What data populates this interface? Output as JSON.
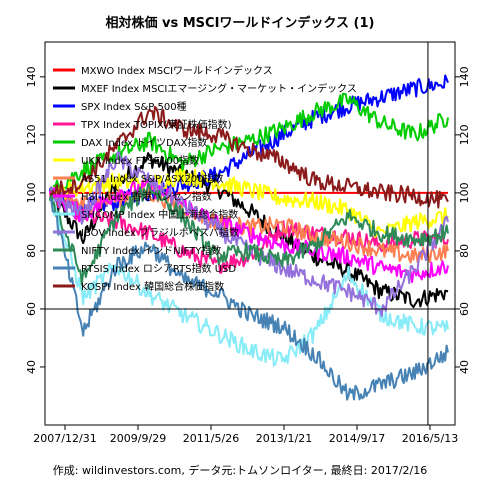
{
  "chart_data": {
    "type": "line",
    "title": "相対株価 vs MSCIワールドインデックス (1)",
    "caption": "作成: wildinvestors.com, データ元:トムソンロイター, 最終日: 2017/2/16",
    "x_tick_labels": [
      "2007/12/31",
      "2009/9/29",
      "2011/5/26",
      "2013/1/21",
      "2014/9/17",
      "2016/5/13"
    ],
    "x_range": [
      "2007-12-31",
      "2017-02-16"
    ],
    "ylim": [
      20,
      152
    ],
    "y_ticks": [
      40,
      60,
      80,
      100,
      120,
      140
    ],
    "reference_lines": [
      {
        "type": "horizontal",
        "y": 60,
        "color": "#000000"
      },
      {
        "type": "vertical",
        "x": "2016-09-01",
        "color": "#000000"
      }
    ],
    "legend_position": "top-left",
    "series": [
      {
        "name": "MXWO Index MSCIワールドインデックス",
        "color": "#ff0000",
        "points": [
          [
            0,
            100
          ],
          [
            1,
            100
          ],
          [
            2,
            100
          ],
          [
            3,
            100
          ],
          [
            4,
            100
          ],
          [
            5,
            100
          ],
          [
            6,
            100
          ],
          [
            7,
            100
          ],
          [
            8,
            100
          ],
          [
            9,
            100
          ],
          [
            10,
            100
          ],
          [
            11,
            100
          ],
          [
            12,
            100
          ]
        ]
      },
      {
        "name": "MXEF Index MSCIエマージング・マーケット・インデックス",
        "color": "#000000",
        "points": [
          [
            0,
            100
          ],
          [
            1,
            84
          ],
          [
            2,
            103
          ],
          [
            3,
            112
          ],
          [
            4,
            106
          ],
          [
            5,
            102
          ],
          [
            6,
            94
          ],
          [
            7,
            85
          ],
          [
            8,
            78
          ],
          [
            9,
            73
          ],
          [
            10,
            66
          ],
          [
            11,
            63
          ],
          [
            12,
            66
          ]
        ]
      },
      {
        "name": "SPX Index S&P 500種",
        "color": "#0000ff",
        "points": [
          [
            0,
            100
          ],
          [
            1,
            95
          ],
          [
            2,
            97
          ],
          [
            3,
            100
          ],
          [
            4,
            103
          ],
          [
            5,
            106
          ],
          [
            6,
            113
          ],
          [
            7,
            120
          ],
          [
            8,
            126
          ],
          [
            9,
            130
          ],
          [
            10,
            133
          ],
          [
            11,
            136
          ],
          [
            12,
            138
          ]
        ]
      },
      {
        "name": "TPX Index TOPIX(東証株価指数)",
        "color": "#ff1493",
        "points": [
          [
            0,
            100
          ],
          [
            1,
            92
          ],
          [
            2,
            90
          ],
          [
            3,
            86
          ],
          [
            4,
            80
          ],
          [
            5,
            75
          ],
          [
            6,
            78
          ],
          [
            7,
            88
          ],
          [
            8,
            86
          ],
          [
            9,
            85
          ],
          [
            10,
            82
          ],
          [
            11,
            84
          ],
          [
            12,
            84
          ]
        ]
      },
      {
        "name": "DAX Index ドイツDAX指数",
        "color": "#00cc00",
        "points": [
          [
            0,
            100
          ],
          [
            1,
            108
          ],
          [
            2,
            113
          ],
          [
            3,
            118
          ],
          [
            4,
            110
          ],
          [
            5,
            115
          ],
          [
            6,
            118
          ],
          [
            7,
            122
          ],
          [
            8,
            128
          ],
          [
            9,
            132
          ],
          [
            10,
            124
          ],
          [
            11,
            120
          ],
          [
            12,
            126
          ]
        ]
      },
      {
        "name": "UKX Index FTSE100指数",
        "color": "#ffff00",
        "points": [
          [
            0,
            100
          ],
          [
            1,
            102
          ],
          [
            2,
            104
          ],
          [
            3,
            103
          ],
          [
            4,
            106
          ],
          [
            5,
            104
          ],
          [
            6,
            101
          ],
          [
            7,
            98
          ],
          [
            8,
            97
          ],
          [
            9,
            94
          ],
          [
            10,
            86
          ],
          [
            11,
            90
          ],
          [
            12,
            92
          ]
        ]
      },
      {
        "name": "AS51 Index S&P/ASX200指数",
        "color": "#ff7f50",
        "points": [
          [
            0,
            100
          ],
          [
            1,
            96
          ],
          [
            2,
            98
          ],
          [
            3,
            100
          ],
          [
            4,
            95
          ],
          [
            5,
            90
          ],
          [
            6,
            88
          ],
          [
            7,
            89
          ],
          [
            8,
            85
          ],
          [
            9,
            83
          ],
          [
            10,
            80
          ],
          [
            11,
            78
          ],
          [
            12,
            80
          ]
        ]
      },
      {
        "name": "HSI Index 香港ハンセン指数",
        "color": "#ff00ff",
        "points": [
          [
            0,
            100
          ],
          [
            1,
            92
          ],
          [
            2,
            100
          ],
          [
            3,
            102
          ],
          [
            4,
            96
          ],
          [
            5,
            90
          ],
          [
            6,
            86
          ],
          [
            7,
            82
          ],
          [
            8,
            80
          ],
          [
            9,
            78
          ],
          [
            10,
            74
          ],
          [
            11,
            72
          ],
          [
            12,
            75
          ]
        ]
      },
      {
        "name": "SHCOMP Index 中国上海総合指数",
        "color": "#87ecf7",
        "points": [
          [
            0,
            100
          ],
          [
            1,
            64
          ],
          [
            2,
            75
          ],
          [
            3,
            65
          ],
          [
            4,
            58
          ],
          [
            5,
            52
          ],
          [
            6,
            46
          ],
          [
            7,
            42
          ],
          [
            8,
            52
          ],
          [
            9,
            72
          ],
          [
            10,
            58
          ],
          [
            11,
            54
          ],
          [
            12,
            53
          ]
        ]
      },
      {
        "name": "IBOV Index ブラジルボベスパ指数",
        "color": "#9370db",
        "points": [
          [
            0,
            100
          ],
          [
            1,
            92
          ],
          [
            2,
            112
          ],
          [
            3,
            104
          ],
          [
            4,
            96
          ],
          [
            5,
            88
          ],
          [
            6,
            80
          ],
          [
            7,
            74
          ],
          [
            8,
            70
          ],
          [
            9,
            66
          ],
          [
            10,
            60
          ],
          [
            11,
            74
          ],
          [
            12,
            90
          ]
        ]
      },
      {
        "name": "NIFTY Index インドNIFTY指数",
        "color": "#2e8b57",
        "points": [
          [
            0,
            100
          ],
          [
            1,
            70
          ],
          [
            2,
            92
          ],
          [
            3,
            102
          ],
          [
            4,
            92
          ],
          [
            5,
            78
          ],
          [
            6,
            80
          ],
          [
            7,
            76
          ],
          [
            8,
            82
          ],
          [
            9,
            92
          ],
          [
            10,
            86
          ],
          [
            11,
            84
          ],
          [
            12,
            86
          ]
        ]
      },
      {
        "name": "RTSIS Index ロシアRTS指数 USD",
        "color": "#4682b4",
        "points": [
          [
            0,
            100
          ],
          [
            1,
            52
          ],
          [
            2,
            75
          ],
          [
            3,
            82
          ],
          [
            4,
            70
          ],
          [
            5,
            66
          ],
          [
            6,
            58
          ],
          [
            7,
            54
          ],
          [
            8,
            44
          ],
          [
            9,
            30
          ],
          [
            10,
            34
          ],
          [
            11,
            38
          ],
          [
            12,
            45
          ]
        ]
      },
      {
        "name": "KOSPI Index 韓国総合株価指数",
        "color": "#8b1a1a",
        "points": [
          [
            0,
            100
          ],
          [
            1,
            104
          ],
          [
            2,
            116
          ],
          [
            3,
            128
          ],
          [
            4,
            122
          ],
          [
            5,
            120
          ],
          [
            6,
            115
          ],
          [
            7,
            111
          ],
          [
            8,
            104
          ],
          [
            9,
            102
          ],
          [
            10,
            100
          ],
          [
            11,
            99
          ],
          [
            12,
            97
          ]
        ]
      }
    ]
  }
}
